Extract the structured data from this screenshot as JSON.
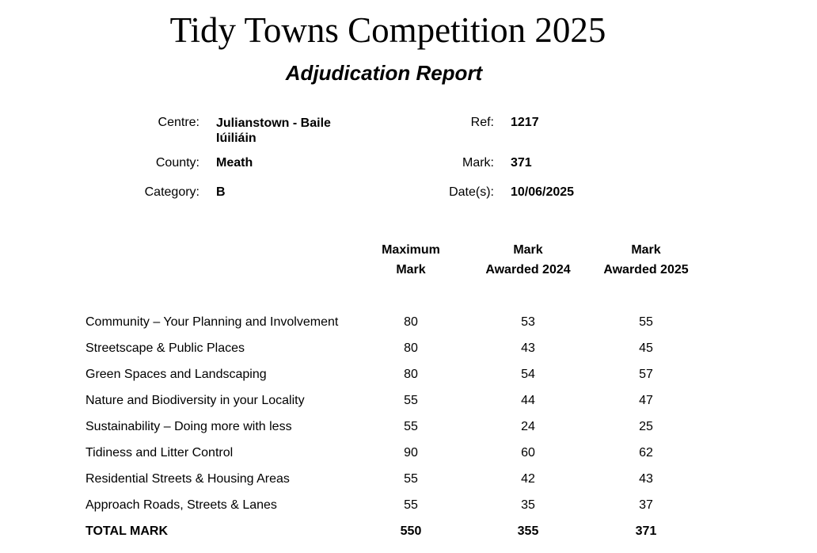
{
  "title": "Tidy Towns Competition 2025",
  "subtitle": "Adjudication Report",
  "info": {
    "centre_label": "Centre:",
    "centre_line1": "Julianstown - Baile",
    "centre_line2": "Iúiliáin",
    "county_label": "County:",
    "county": "Meath",
    "category_label": "Category:",
    "category": "B",
    "ref_label": "Ref:",
    "ref": "1217",
    "mark_label": "Mark:",
    "mark": "371",
    "dates_label": "Date(s):",
    "dates": "10/06/2025"
  },
  "table": {
    "headers": [
      [
        "Maximum",
        "Mark"
      ],
      [
        "Mark",
        "Awarded 2024"
      ],
      [
        "Mark",
        "Awarded 2025"
      ]
    ],
    "rows": [
      [
        "Community – Your Planning and Involvement",
        "80",
        "53",
        "55"
      ],
      [
        "Streetscape & Public Places",
        "80",
        "43",
        "45"
      ],
      [
        "Green Spaces and Landscaping",
        "80",
        "54",
        "57"
      ],
      [
        "Nature and Biodiversity in your Locality",
        "55",
        "44",
        "47"
      ],
      [
        "Sustainability – Doing more with less",
        "55",
        "24",
        "25"
      ],
      [
        "Tidiness and Litter Control",
        "90",
        "60",
        "62"
      ],
      [
        "Residential Streets & Housing Areas",
        "55",
        "42",
        "43"
      ],
      [
        "Approach Roads, Streets & Lanes",
        "55",
        "35",
        "37"
      ]
    ],
    "total": [
      "TOTAL MARK",
      "550",
      "355",
      "371"
    ]
  }
}
